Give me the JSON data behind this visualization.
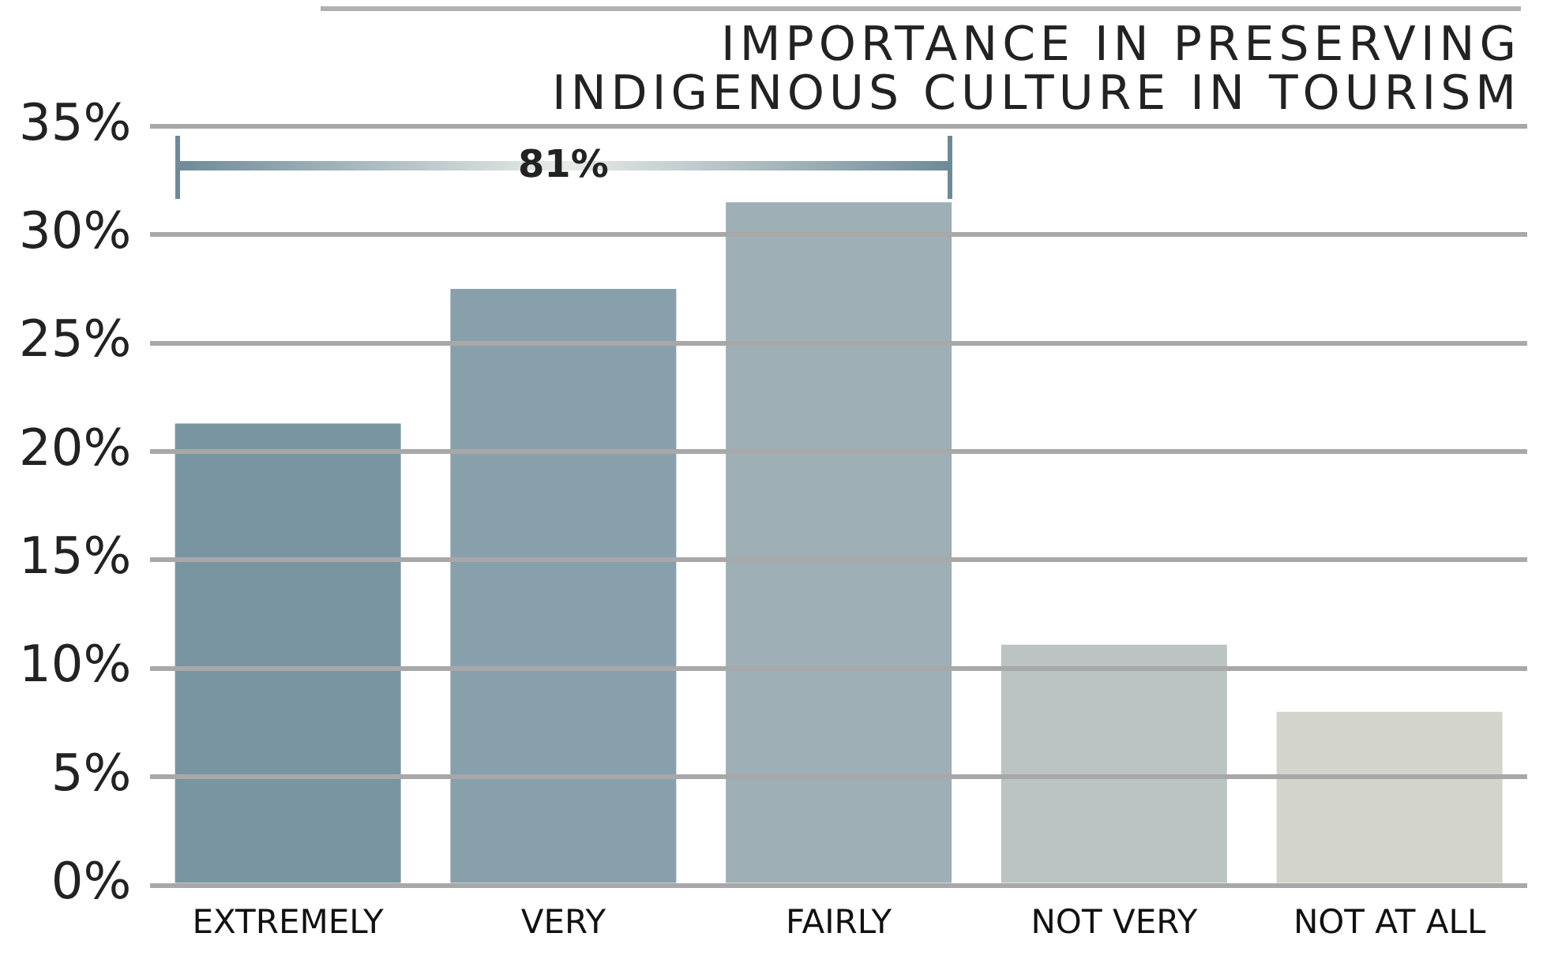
{
  "chart_data": {
    "type": "bar",
    "title": "IMPORTANCE IN PRESERVING INDIGENOUS CULTURE IN TOURISM",
    "categories": [
      "EXTREMELY",
      "VERY",
      "FAIRLY",
      "NOT VERY",
      "NOT AT ALL"
    ],
    "values": [
      21.3,
      27.5,
      31.5,
      11.1,
      8.0
    ],
    "colors": [
      "#7a95a2",
      "#88a0ab",
      "#9eafb5",
      "#bcc4c3",
      "#d3d4cb"
    ],
    "ylim": [
      0,
      35
    ],
    "yticks": [
      {
        "value": 0,
        "label": "0%"
      },
      {
        "value": 5,
        "label": "5%"
      },
      {
        "value": 10,
        "label": "10%"
      },
      {
        "value": 15,
        "label": "15%"
      },
      {
        "value": 20,
        "label": "20%"
      },
      {
        "value": 25,
        "label": "25%"
      },
      {
        "value": 30,
        "label": "30%"
      },
      {
        "value": 35,
        "label": "35%"
      }
    ],
    "grid": "y",
    "legend": false,
    "annotations": [
      "81%"
    ]
  }
}
